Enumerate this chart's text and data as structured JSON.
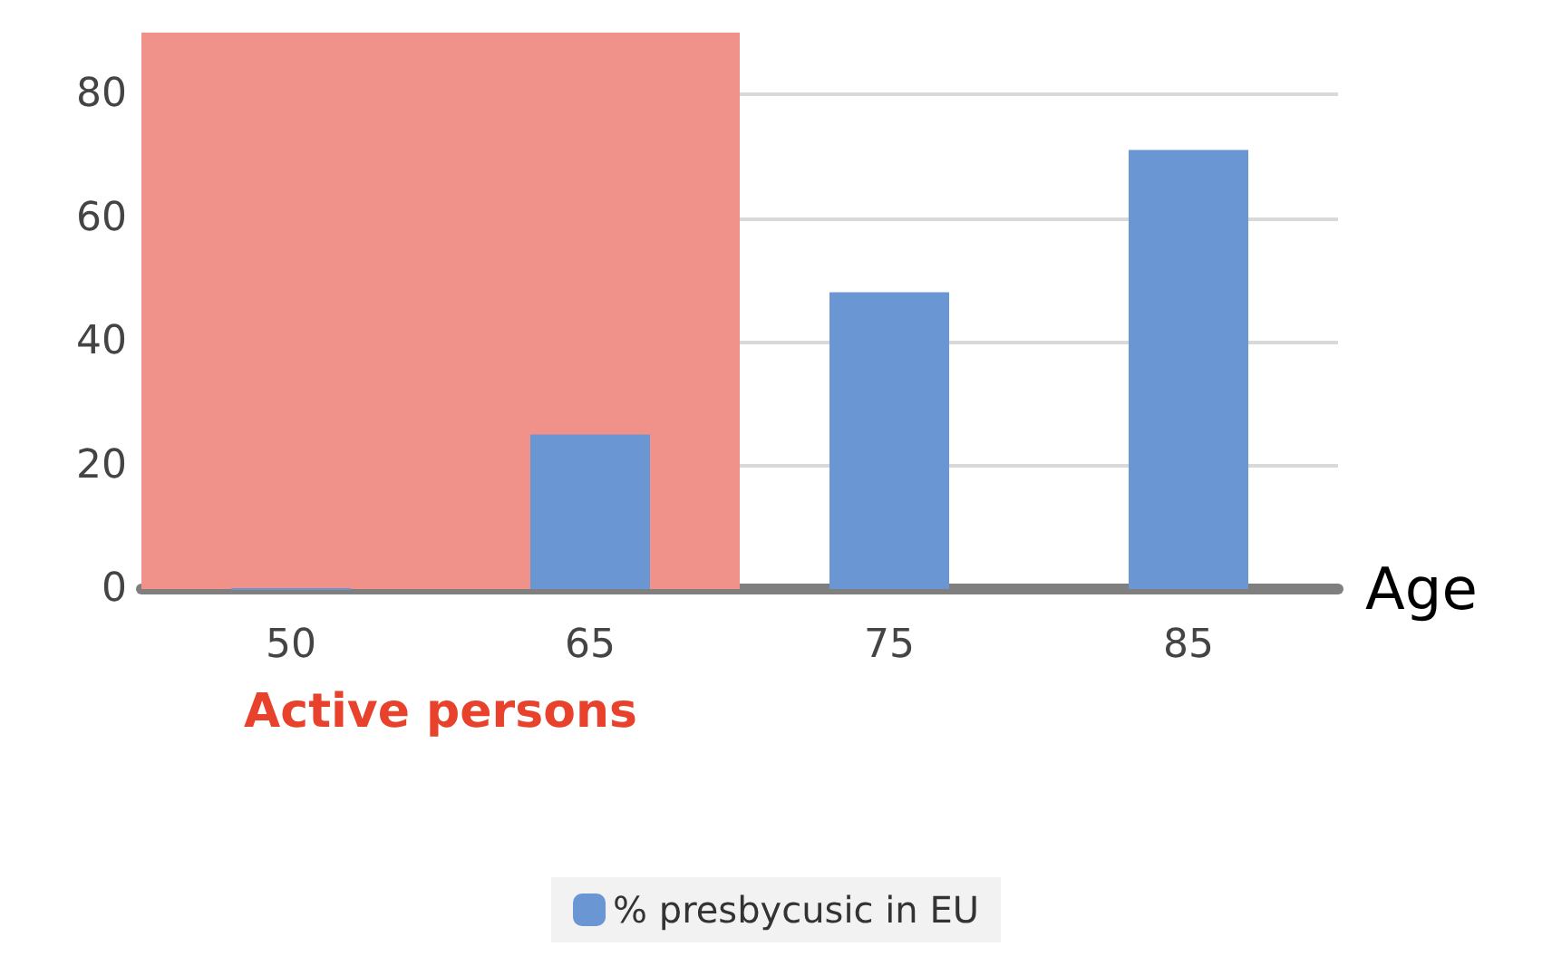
{
  "chart_data": {
    "type": "bar",
    "xlabel": "Age",
    "categories": [
      "50",
      "65",
      "75",
      "85"
    ],
    "series": [
      {
        "name": "% presbycusic in EU",
        "color": "#6a96d4",
        "values": [
          0,
          25,
          48,
          71
        ]
      }
    ],
    "ylim": [
      0,
      90
    ],
    "yticks": [
      0,
      20,
      40,
      60,
      80
    ],
    "grid": "y",
    "legend": "bottom",
    "bands": [
      {
        "axis": "x",
        "from": "50",
        "to": "65",
        "label": "Active persons",
        "color": "#f0928a"
      }
    ]
  }
}
